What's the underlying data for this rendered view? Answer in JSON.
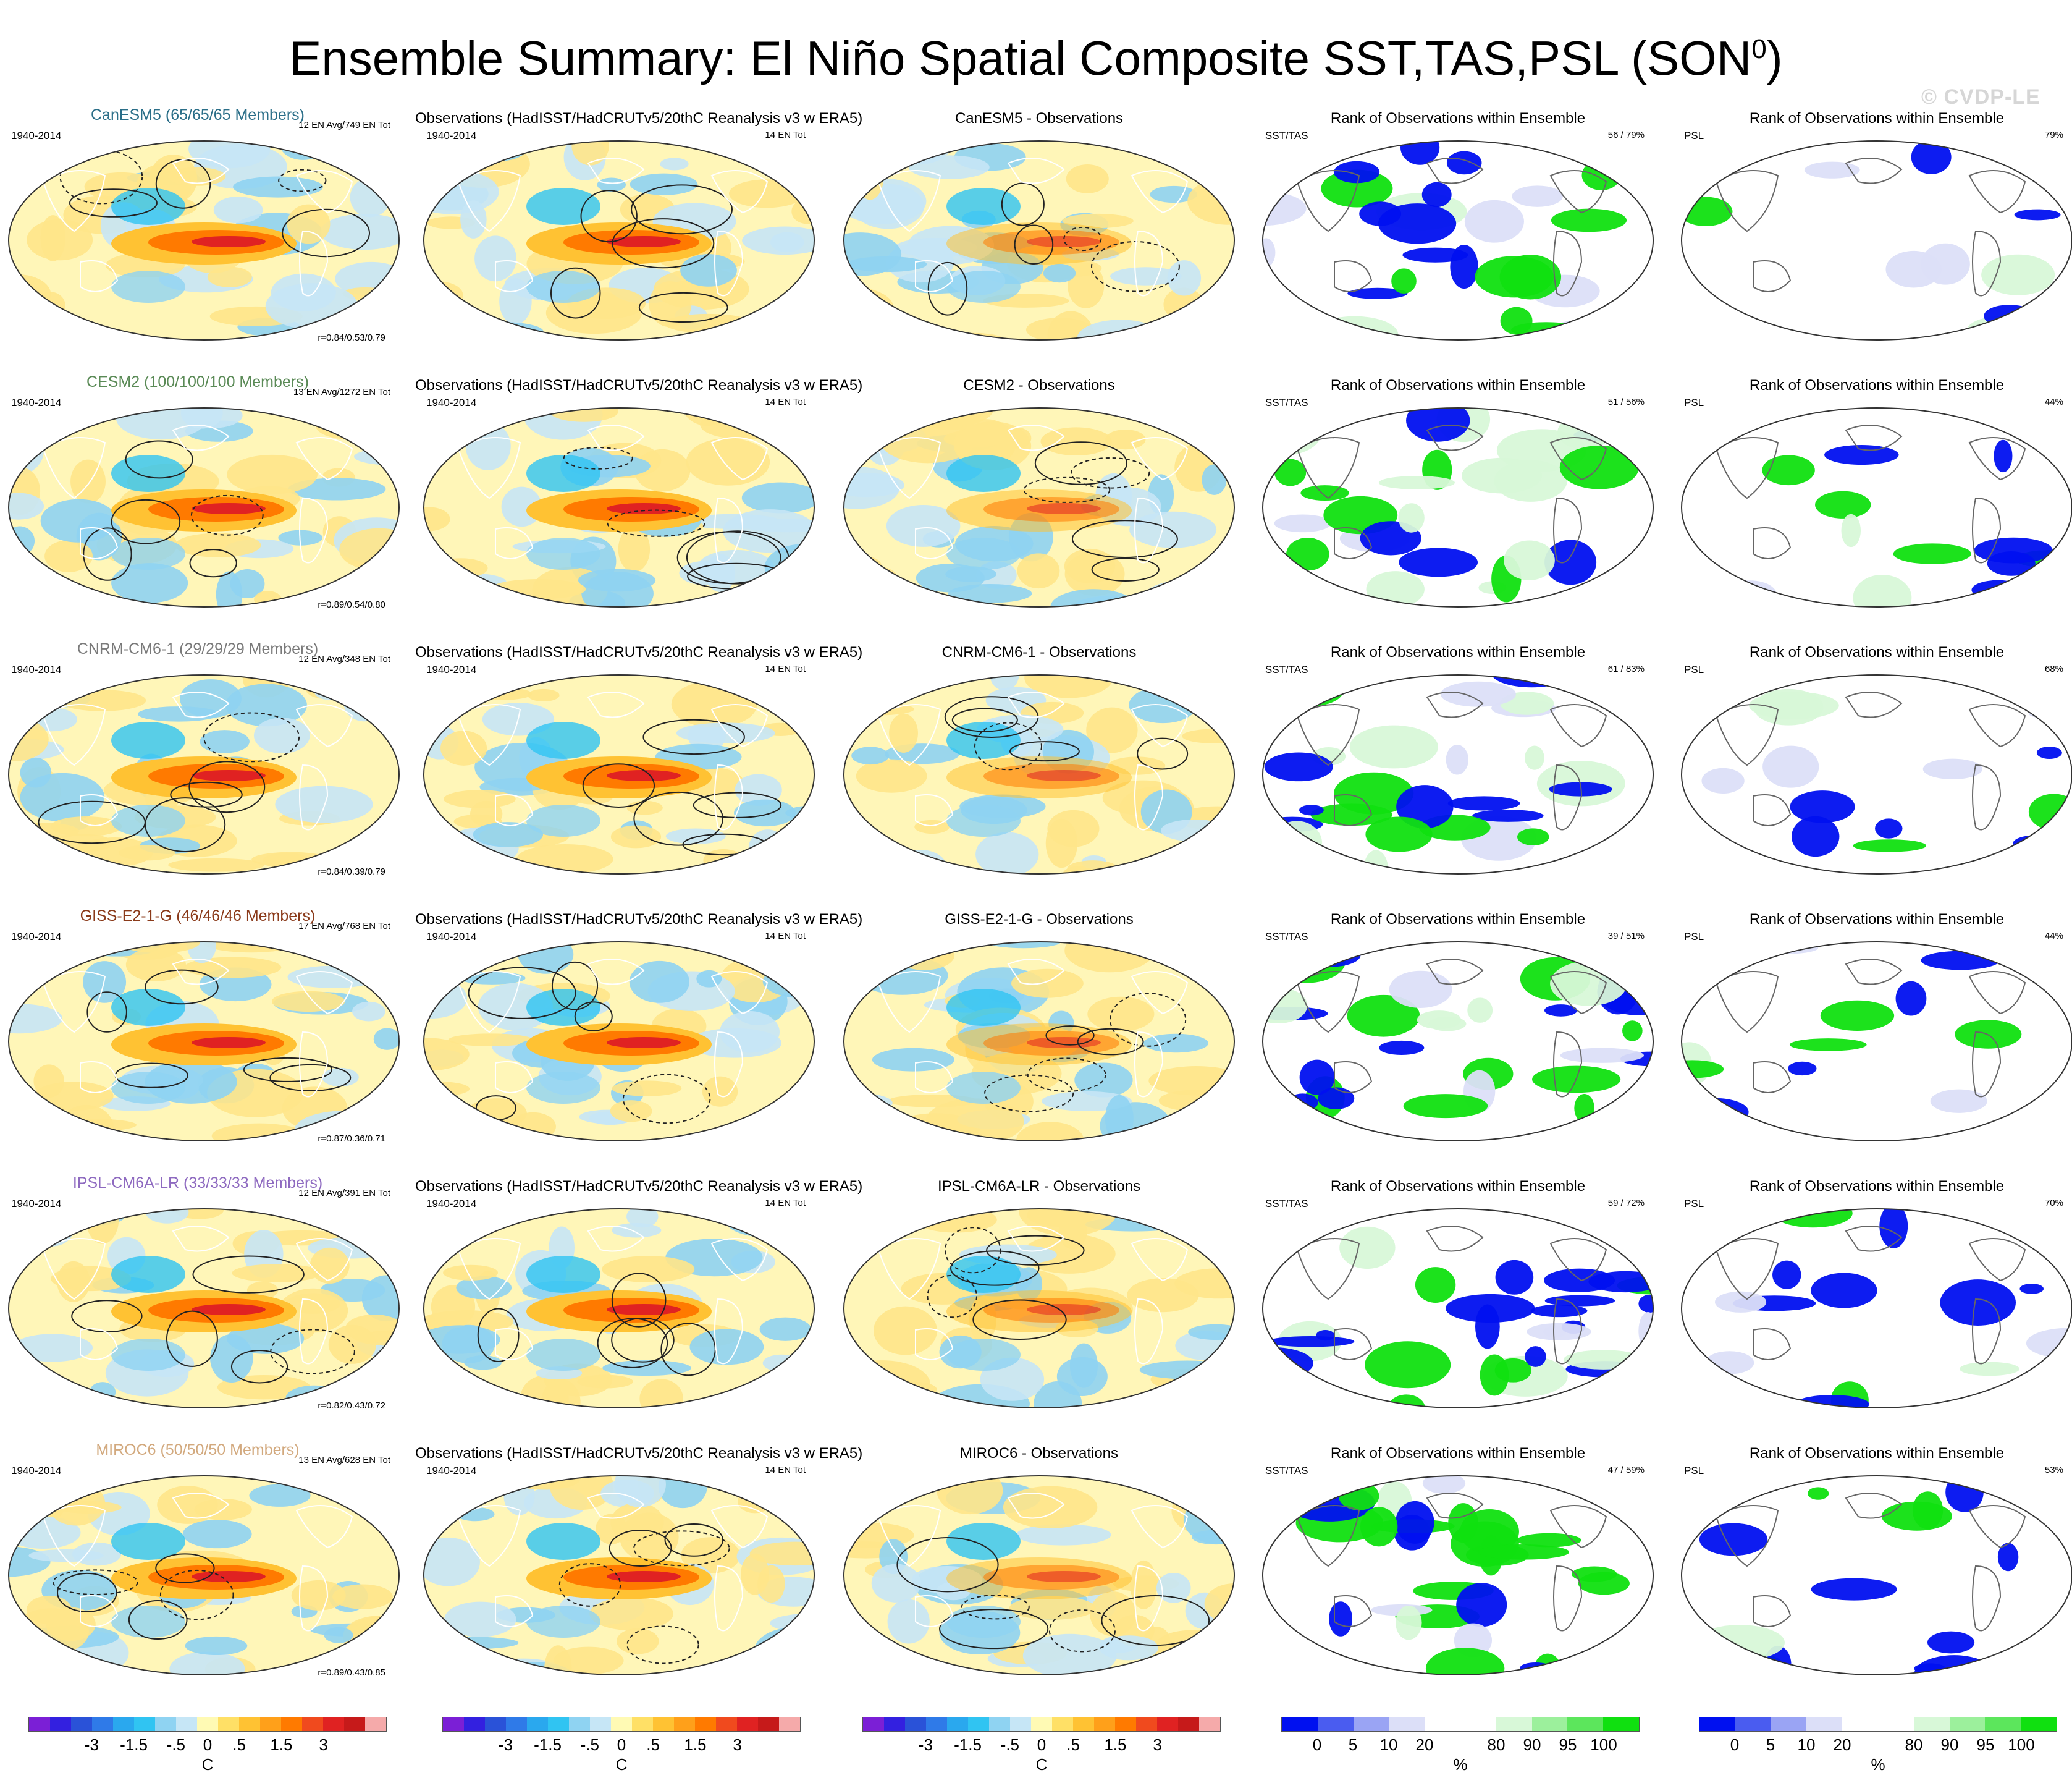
{
  "title": "Ensemble Summary: El Niño Spatial Composite SST,TAS,PSL (SON",
  "title_superscript": "0",
  "title_close": ")",
  "watermark": "© CVDP-LE",
  "rows": [
    {
      "model": {
        "title": "CanESM5 (65/65/65 Members)",
        "color": "#2a6e88",
        "period": "1940-2014",
        "info": "12 EN Avg/749 EN Tot",
        "corr": "r=0.84/0.53/0.79"
      },
      "obs": {
        "title": "Observations (HadISST/HadCRUTv5/20thC Reanalysis v3 w ERA5)",
        "period": "1940-2014",
        "info": "14 EN Tot"
      },
      "diff": {
        "title": "CanESM5 - Observations"
      },
      "rank_sst": {
        "title": "Rank of Observations within Ensemble",
        "label": "SST/TAS",
        "pct": "56 /  79%"
      },
      "rank_psl": {
        "title": "Rank of Observations within Ensemble",
        "label": "PSL",
        "pct": "79%"
      }
    },
    {
      "model": {
        "title": "CESM2 (100/100/100 Members)",
        "color": "#5a8a56",
        "period": "1940-2014",
        "info": "13 EN Avg/1272 EN Tot",
        "corr": "r=0.89/0.54/0.80"
      },
      "obs": {
        "title": "Observations (HadISST/HadCRUTv5/20thC Reanalysis v3 w ERA5)",
        "period": "1940-2014",
        "info": "14 EN Tot"
      },
      "diff": {
        "title": "CESM2 - Observations"
      },
      "rank_sst": {
        "title": "Rank of Observations within Ensemble",
        "label": "SST/TAS",
        "pct": "51 /  56%"
      },
      "rank_psl": {
        "title": "Rank of Observations within Ensemble",
        "label": "PSL",
        "pct": "44%"
      }
    },
    {
      "model": {
        "title": "CNRM-CM6-1 (29/29/29 Members)",
        "color": "#7a7a7a",
        "period": "1940-2014",
        "info": "12 EN Avg/348 EN Tot",
        "corr": "r=0.84/0.39/0.79"
      },
      "obs": {
        "title": "Observations (HadISST/HadCRUTv5/20thC Reanalysis v3 w ERA5)",
        "period": "1940-2014",
        "info": "14 EN Tot"
      },
      "diff": {
        "title": "CNRM-CM6-1 - Observations"
      },
      "rank_sst": {
        "title": "Rank of Observations within Ensemble",
        "label": "SST/TAS",
        "pct": "61 /  83%"
      },
      "rank_psl": {
        "title": "Rank of Observations within Ensemble",
        "label": "PSL",
        "pct": "68%"
      }
    },
    {
      "model": {
        "title": "GISS-E2-1-G (46/46/46 Members)",
        "color": "#8a3a1a",
        "period": "1940-2014",
        "info": "17 EN Avg/768 EN Tot",
        "corr": "r=0.87/0.36/0.71"
      },
      "obs": {
        "title": "Observations (HadISST/HadCRUTv5/20thC Reanalysis v3 w ERA5)",
        "period": "1940-2014",
        "info": "14 EN Tot"
      },
      "diff": {
        "title": "GISS-E2-1-G - Observations"
      },
      "rank_sst": {
        "title": "Rank of Observations within Ensemble",
        "label": "SST/TAS",
        "pct": "39 /  51%"
      },
      "rank_psl": {
        "title": "Rank of Observations within Ensemble",
        "label": "PSL",
        "pct": "44%"
      }
    },
    {
      "model": {
        "title": "IPSL-CM6A-LR (33/33/33 Members)",
        "color": "#8e6ac0",
        "period": "1940-2014",
        "info": "12 EN Avg/391 EN Tot",
        "corr": "r=0.82/0.43/0.72"
      },
      "obs": {
        "title": "Observations (HadISST/HadCRUTv5/20thC Reanalysis v3 w ERA5)",
        "period": "1940-2014",
        "info": "14 EN Tot"
      },
      "diff": {
        "title": "IPSL-CM6A-LR - Observations"
      },
      "rank_sst": {
        "title": "Rank of Observations within Ensemble",
        "label": "SST/TAS",
        "pct": "59 /  72%"
      },
      "rank_psl": {
        "title": "Rank of Observations within Ensemble",
        "label": "PSL",
        "pct": "70%"
      }
    },
    {
      "model": {
        "title": "MIROC6 (50/50/50 Members)",
        "color": "#d2a97e",
        "period": "1940-2014",
        "info": "13 EN Avg/628 EN Tot",
        "corr": "r=0.89/0.43/0.85"
      },
      "obs": {
        "title": "Observations (HadISST/HadCRUTv5/20thC Reanalysis v3 w ERA5)",
        "period": "1940-2014",
        "info": "14 EN Tot"
      },
      "diff": {
        "title": "MIROC6 - Observations"
      },
      "rank_sst": {
        "title": "Rank of Observations within Ensemble",
        "label": "SST/TAS",
        "pct": "47 /  59%"
      },
      "rank_psl": {
        "title": "Rank of Observations within Ensemble",
        "label": "PSL",
        "pct": "53%"
      }
    }
  ],
  "colorbars": {
    "temp": {
      "colors": [
        "#7b1fd6",
        "#3320e0",
        "#2a52d8",
        "#2f7ae8",
        "#2aa8ee",
        "#30c4f2",
        "#8fd3f2",
        "#c6e6f6",
        "#fffab4",
        "#ffe066",
        "#ffc233",
        "#ffa01a",
        "#ff7a00",
        "#f04a1e",
        "#e02222",
        "#c61a1a",
        "#f5aaaa"
      ],
      "labels": [
        "-3",
        "-1.5",
        "-.5",
        "0",
        ".5",
        "1.5",
        "3"
      ],
      "label_pos": [
        0.1765,
        0.2941,
        0.4118,
        0.5,
        0.5882,
        0.7059,
        0.8235
      ],
      "unit": "C"
    },
    "rank": {
      "colors": [
        "#0010f0",
        "#4a5cf0",
        "#9aa4f4",
        "#dcdff8",
        "#ffffff",
        "#ffffff",
        "#d8f8d8",
        "#9cf09c",
        "#5ce65c",
        "#10e010"
      ],
      "labels": [
        "0",
        "5",
        "10",
        "20",
        "80",
        "90",
        "95",
        "100"
      ],
      "label_pos": [
        0.1,
        0.2,
        0.3,
        0.4,
        0.6,
        0.7,
        0.8,
        0.9
      ],
      "unit": "%"
    }
  }
}
